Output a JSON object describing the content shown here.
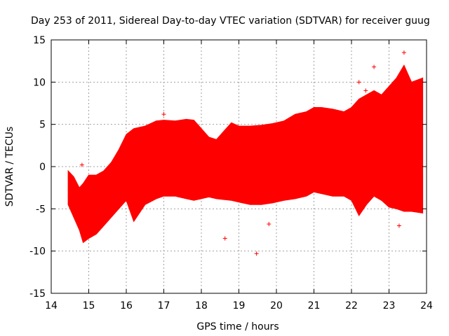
{
  "chart_data": {
    "type": "scatter",
    "title": "Day 253 of 2011, Sidereal Day-to-day VTEC variation (SDTVAR) for receiver guug",
    "xlabel": "GPS time / hours",
    "ylabel": "SDTVAR / TECUs",
    "xlim": [
      14,
      24
    ],
    "ylim": [
      -15,
      15
    ],
    "xticks": [
      "14",
      "15",
      "16",
      "17",
      "18",
      "19",
      "20",
      "21",
      "22",
      "23",
      "24"
    ],
    "yticks": [
      "15",
      "10",
      "5",
      "0",
      "-5",
      "-10",
      "-15"
    ],
    "grid": true,
    "series_color": "#ff0000",
    "envelope": {
      "x": [
        14.45,
        14.6,
        14.75,
        14.85,
        15.0,
        15.2,
        15.4,
        15.6,
        15.8,
        16.0,
        16.2,
        16.5,
        16.8,
        17.0,
        17.3,
        17.6,
        17.8,
        18.0,
        18.2,
        18.4,
        18.6,
        18.8,
        19.0,
        19.3,
        19.6,
        19.9,
        20.2,
        20.5,
        20.8,
        21.0,
        21.2,
        21.5,
        21.8,
        22.0,
        22.2,
        22.4,
        22.6,
        22.8,
        23.0,
        23.2,
        23.4,
        23.6,
        23.9
      ],
      "upper": [
        -0.5,
        -1.2,
        -2.5,
        -2.0,
        -1.0,
        -1.0,
        -0.5,
        0.5,
        2.0,
        3.8,
        4.5,
        4.8,
        5.4,
        5.5,
        5.4,
        5.6,
        5.5,
        4.5,
        3.5,
        3.2,
        4.2,
        5.2,
        4.8,
        4.8,
        4.9,
        5.1,
        5.4,
        6.2,
        6.5,
        7.0,
        7.0,
        6.8,
        6.5,
        7.0,
        8.0,
        8.5,
        9.0,
        8.5,
        9.5,
        10.5,
        12.0,
        10.0,
        10.5
      ],
      "lower": [
        -4.5,
        -6.0,
        -7.5,
        -9.0,
        -8.5,
        -8.0,
        -7.0,
        -6.0,
        -5.0,
        -4.0,
        -6.5,
        -4.5,
        -3.8,
        -3.5,
        -3.5,
        -3.8,
        -4.0,
        -3.8,
        -3.6,
        -3.8,
        -3.9,
        -4.0,
        -4.2,
        -4.5,
        -4.5,
        -4.3,
        -4.0,
        -3.8,
        -3.5,
        -3.0,
        -3.2,
        -3.5,
        -3.5,
        -4.0,
        -5.8,
        -4.5,
        -3.5,
        -4.0,
        -4.8,
        -5.0,
        -5.3,
        -5.3,
        -5.5
      ]
    },
    "points": [
      {
        "x": 14.82,
        "y": 0.2
      },
      {
        "x": 17.0,
        "y": 6.2
      },
      {
        "x": 18.63,
        "y": -8.5
      },
      {
        "x": 19.47,
        "y": -10.3
      },
      {
        "x": 19.8,
        "y": -6.8
      },
      {
        "x": 22.2,
        "y": 10.0
      },
      {
        "x": 22.38,
        "y": 9.0
      },
      {
        "x": 22.6,
        "y": 11.8
      },
      {
        "x": 23.27,
        "y": -7.0
      },
      {
        "x": 23.4,
        "y": 13.5
      }
    ]
  }
}
